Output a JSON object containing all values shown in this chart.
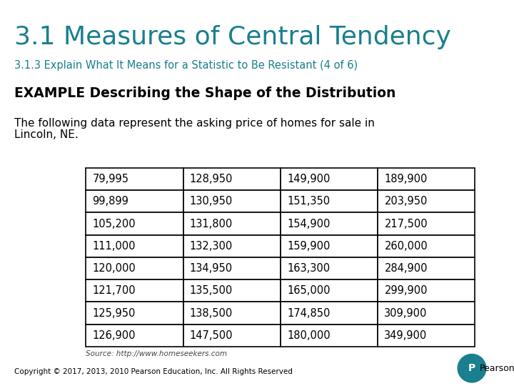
{
  "title": "3.1 Measures of Central Tendency",
  "subtitle": "3.1.3 Explain What It Means for a Statistic to Be Resistant (4 of 6)",
  "title_color": "#1a7f8e",
  "subtitle_color": "#1a7f8e",
  "example_heading": "EXAMPLE Describing the Shape of the Distribution",
  "body_line1": "The following data represent the asking price of homes for sale in",
  "body_line2": "Lincoln, NE.",
  "table_data": [
    [
      "79,995",
      "128,950",
      "149,900",
      "189,900"
    ],
    [
      "99,899",
      "130,950",
      "151,350",
      "203,950"
    ],
    [
      "105,200",
      "131,800",
      "154,900",
      "217,500"
    ],
    [
      "111,000",
      "132,300",
      "159,900",
      "260,000"
    ],
    [
      "120,000",
      "134,950",
      "163,300",
      "284,900"
    ],
    [
      "121,700",
      "135,500",
      "165,000",
      "299,900"
    ],
    [
      "125,950",
      "138,500",
      "174,850",
      "309,900"
    ],
    [
      "126,900",
      "147,500",
      "180,000",
      "349,900"
    ]
  ],
  "source_text": "Source: http://www.homeseekers.com",
  "copyright_text": "Copyright © 2017, 2013, 2010 Pearson Education, Inc. All Rights Reserved",
  "bg_color": "#ffffff",
  "text_color": "#000000",
  "teal_color": "#1a7f8e",
  "table_border_color": "#000000",
  "table_text_color": "#000000",
  "fig_width": 7.2,
  "fig_height": 5.4,
  "dpi": 100
}
